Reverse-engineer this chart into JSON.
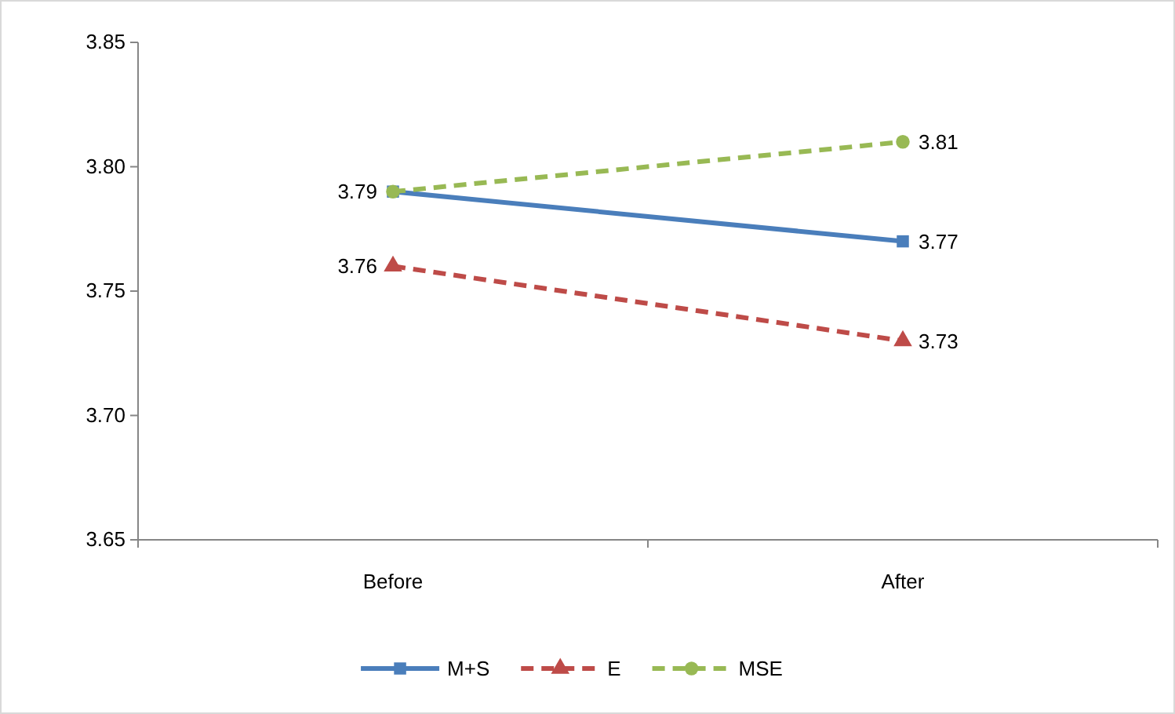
{
  "chart_data": {
    "type": "line",
    "categories": [
      "Before",
      "After"
    ],
    "series": [
      {
        "name": "M+S",
        "color": "#4a7ebb",
        "values": [
          3.79,
          3.77
        ],
        "value_labels": [
          "3.79",
          "3.77"
        ],
        "marker": "square",
        "line_style": "solid"
      },
      {
        "name": "E",
        "color": "#be4b48",
        "values": [
          3.76,
          3.73
        ],
        "value_labels": [
          "3.76",
          "3.73"
        ],
        "marker": "triangle",
        "line_style": "dashed"
      },
      {
        "name": "MSE",
        "color": "#98b954",
        "values": [
          3.79,
          3.81
        ],
        "value_labels": [
          null,
          "3.81"
        ],
        "marker": "circle",
        "line_style": "dashed"
      }
    ],
    "ylim": [
      3.65,
      3.85
    ],
    "yticks": [
      {
        "value": 3.65,
        "label": "3.65"
      },
      {
        "value": 3.7,
        "label": "3.70"
      },
      {
        "value": 3.75,
        "label": "3.75"
      },
      {
        "value": 3.8,
        "label": "3.80"
      },
      {
        "value": 3.85,
        "label": "3.85"
      }
    ],
    "grid": false,
    "legend": "bottom"
  }
}
